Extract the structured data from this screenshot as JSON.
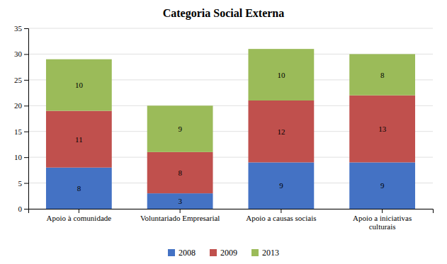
{
  "chart_data": {
    "type": "bar",
    "stacked": true,
    "title": "Categoria Social Externa",
    "categories": [
      "Apoio à comunidade",
      "Voluntariado Empresarial",
      "Apoio a causas sociais",
      "Apoio a iniciativas\nculturais"
    ],
    "series": [
      {
        "name": "2008",
        "color": "#4472C4",
        "values": [
          8,
          3,
          9,
          9
        ]
      },
      {
        "name": "2009",
        "color": "#C0504D",
        "values": [
          11,
          8,
          12,
          13
        ]
      },
      {
        "name": "2013",
        "color": "#9BBB59",
        "values": [
          10,
          9,
          10,
          8
        ]
      }
    ],
    "ylim": [
      0,
      35
    ],
    "yticks": [
      0,
      5,
      10,
      15,
      20,
      25,
      30,
      35
    ],
    "grid": true,
    "data_labels": true,
    "legend": "bottom"
  }
}
